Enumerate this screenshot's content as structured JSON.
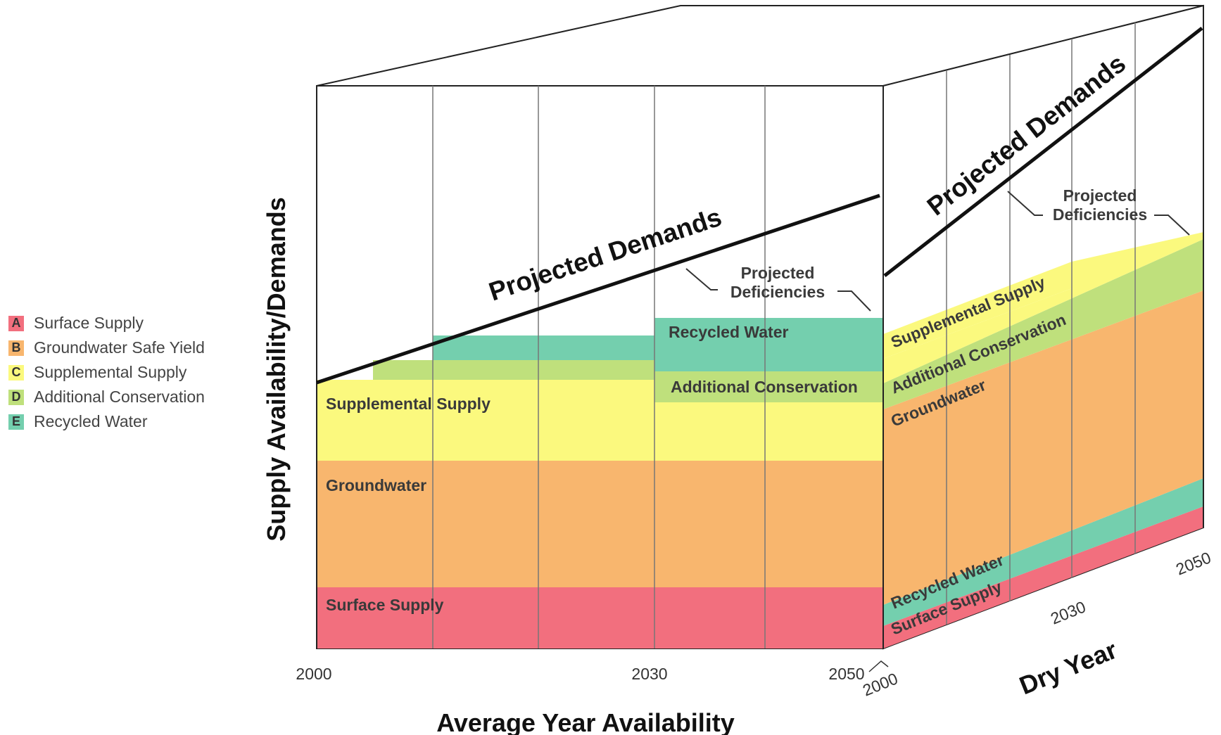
{
  "legend": [
    {
      "key": "A",
      "label": "Surface Supply",
      "color": "#f26f7e"
    },
    {
      "key": "B",
      "label": "Groundwater Safe Yield",
      "color": "#f8b66e"
    },
    {
      "key": "C",
      "label": "Supplemental Supply",
      "color": "#fbf97e"
    },
    {
      "key": "D",
      "label": "Additional Conservation",
      "color": "#bfe07c"
    },
    {
      "key": "E",
      "label": "Recycled Water",
      "color": "#74cfae"
    }
  ],
  "chart_data": [
    {
      "type": "area",
      "title": "Average Year Availability",
      "xlabel": "Average Year Availability",
      "ylabel": "Supply Availability/Demands",
      "x_ticks": [
        "2000",
        "2030",
        "2050"
      ],
      "xlim": [
        2000,
        2050
      ],
      "series": [
        {
          "name": "Surface Supply",
          "values": [
            {
              "x": 2000,
              "y0": 0,
              "y1": 10
            },
            {
              "x": 2050,
              "y0": 0,
              "y1": 10
            }
          ]
        },
        {
          "name": "Groundwater",
          "values": [
            {
              "x": 2000,
              "y0": 10,
              "y1": 31
            },
            {
              "x": 2050,
              "y0": 10,
              "y1": 31
            }
          ]
        },
        {
          "name": "Supplemental Supply",
          "values": [
            {
              "x": 2000,
              "y0": 31,
              "y1": 45
            },
            {
              "x": 2050,
              "y0": 31,
              "y1": 45
            }
          ]
        },
        {
          "name": "Additional Conservation",
          "values": [
            {
              "x": 2005,
              "y": 45,
              "y1": 48
            },
            {
              "x": 2030,
              "y": 45,
              "y1": 49.5
            },
            {
              "x": 2050,
              "y": 45,
              "y1": 49.5
            }
          ]
        },
        {
          "name": "Recycled Water",
          "values": [
            {
              "x": 2010,
              "y0": 48,
              "y1": 52
            },
            {
              "x": 2030,
              "y0": 49.5,
              "y1": 56
            },
            {
              "x": 2050,
              "y0": 49.5,
              "y1": 56
            }
          ]
        },
        {
          "name": "Projected Demands",
          "values": [
            {
              "x": 2000,
              "y": 45
            },
            {
              "x": 2050,
              "y": 78
            }
          ]
        }
      ],
      "annotations": [
        "Projected Deficiencies"
      ]
    },
    {
      "type": "area",
      "title": "Dry Year",
      "xlabel": "Dry Year",
      "x_ticks": [
        "2000",
        "2030",
        "2050"
      ],
      "xlim": [
        2000,
        2050
      ],
      "series": [
        {
          "name": "Surface Supply",
          "values": [
            {
              "x": 2000,
              "y0": 0,
              "y1": 2
            },
            {
              "x": 2050,
              "y0": 0,
              "y1": 5
            }
          ]
        },
        {
          "name": "Recycled Water",
          "values": [
            {
              "x": 2000,
              "y0": 2,
              "y1": 6
            },
            {
              "x": 2050,
              "y0": 5,
              "y1": 10
            }
          ]
        },
        {
          "name": "Groundwater",
          "values": [
            {
              "x": 2000,
              "y0": 6,
              "y1": 42
            },
            {
              "x": 2050,
              "y0": 10,
              "y1": 56
            }
          ]
        },
        {
          "name": "Additional Conservation",
          "values": [
            {
              "x": 2000,
              "y0": 42,
              "y1": 46
            },
            {
              "x": 2050,
              "y0": 56,
              "y1": 63
            }
          ]
        },
        {
          "name": "Supplemental Supply",
          "values": [
            {
              "x": 2000,
              "y0": 46,
              "y1": 52
            },
            {
              "x": 2050,
              "y0": 63,
              "y1": 65
            }
          ]
        },
        {
          "name": "Projected Demands",
          "values": [
            {
              "x": 2000,
              "y": 73
            },
            {
              "x": 2050,
              "y": 124
            }
          ]
        }
      ],
      "annotations": [
        "Projected Deficiencies"
      ]
    }
  ],
  "labels": {
    "projected_demands": "Projected Demands",
    "projected_deficiencies_line1": "Projected",
    "projected_deficiencies_line2": "Deficiencies",
    "recycled_water": "Recycled Water",
    "additional_conservation": "Additional Conservation",
    "supplemental_supply": "Supplemental Supply",
    "groundwater": "Groundwater",
    "surface_supply": "Surface Supply"
  }
}
